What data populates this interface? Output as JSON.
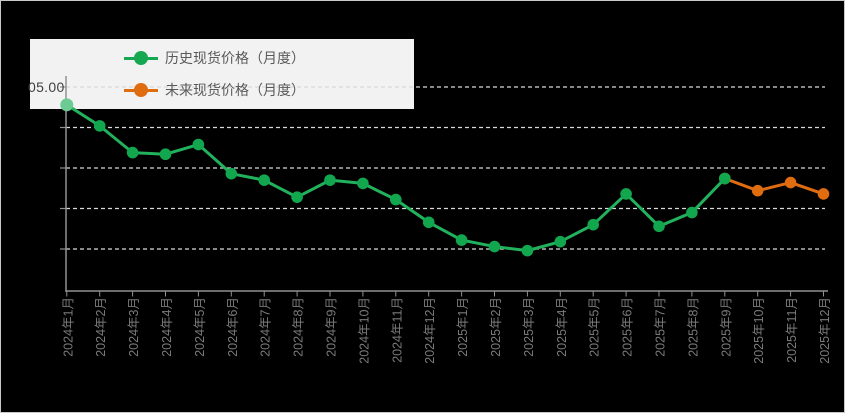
{
  "legend": {
    "background": "#f2f2f2",
    "text_color": "#595959",
    "items": [
      {
        "label": "历史现货价格（月度）",
        "color": "#16a851"
      },
      {
        "label": "未来现货价格（月度）",
        "color": "#e06c10"
      }
    ]
  },
  "y_axis": {
    "visible_top_label": "05.00",
    "label_color": "#3f3f3f"
  },
  "chart_data": {
    "type": "line",
    "title": "",
    "xlabel": "",
    "ylabel": "",
    "categories": [
      "2024年1月",
      "2024年2月",
      "2024年3月",
      "2024年4月",
      "2024年5月",
      "2024年6月",
      "2024年7月",
      "2024年8月",
      "2024年9月",
      "2024年10月",
      "2024年11月",
      "2024年12月",
      "2025年1月",
      "2025年2月",
      "2025年3月",
      "2025年4月",
      "2025年5月",
      "2025年6月",
      "2025年7月",
      "2025年8月",
      "2025年9月",
      "2025年10月",
      "2025年11月",
      "2025年12月"
    ],
    "series": [
      {
        "name": "未来现货价格（月度）",
        "line_color": "#e06c10",
        "marker_color": "#e06c10",
        "values": [
          null,
          null,
          null,
          null,
          null,
          null,
          null,
          null,
          null,
          null,
          null,
          null,
          null,
          null,
          null,
          null,
          null,
          null,
          null,
          null,
          93.7,
          92.2,
          93.2,
          91.8
        ]
      },
      {
        "name": "历史现货价格（月度）",
        "line_color": "#22b15c",
        "marker_color": "#12a74f",
        "first_marker_color": "#6bcb92",
        "values": [
          102.8,
          100.2,
          96.9,
          96.7,
          97.9,
          94.3,
          93.5,
          91.4,
          93.5,
          93.1,
          91.1,
          88.3,
          86.1,
          85.3,
          84.8,
          85.9,
          88.0,
          91.8,
          87.8,
          89.5,
          93.7,
          null,
          null,
          null
        ]
      }
    ],
    "y_gridlines": [
      85,
      90,
      95,
      100,
      105
    ],
    "ylim": [
      79.8,
      107.6
    ],
    "grid_style": "dashed",
    "grid_color": "#d9d9d9",
    "axis_color": "#919191",
    "xtick_label_color": "#7a7a7a",
    "xlabel_rotation": -90,
    "plot_bg": "#000000",
    "legend_position": "top-left",
    "note": "left y-axis labels are cropped by the image edge; only '05.00' is visible at the top gridline — values estimated assuming top gridline = 105.00 and a step of 5 per gridline"
  }
}
